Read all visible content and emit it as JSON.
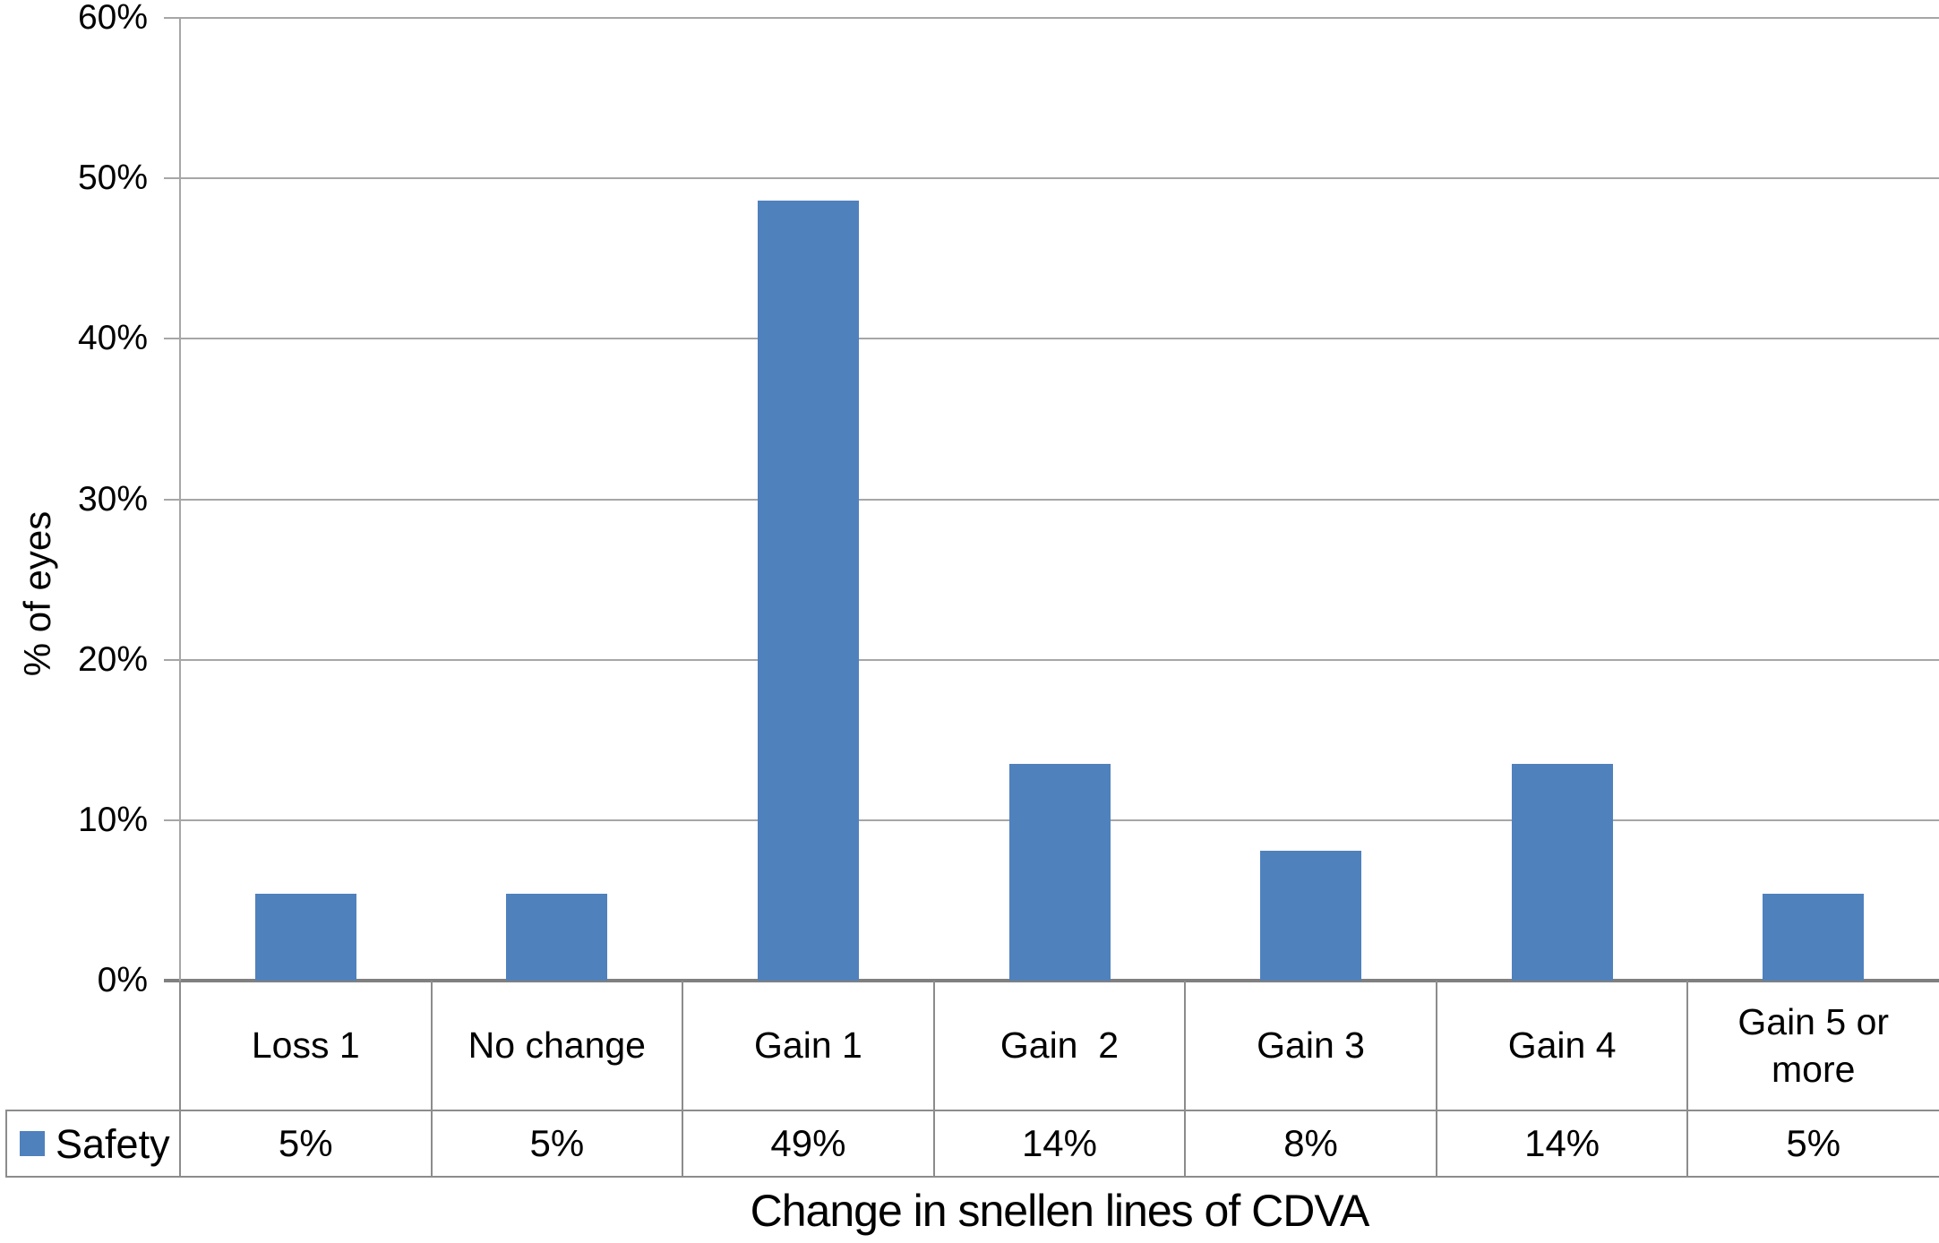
{
  "chart_data": {
    "type": "bar",
    "title": "",
    "xlabel": "Change in snellen lines of CDVA",
    "ylabel": "% of eyes",
    "categories": [
      "Loss 1",
      "No change",
      "Gain 1",
      "Gain  2",
      "Gain 3",
      "Gain 4",
      "Gain 5 or more"
    ],
    "series": [
      {
        "name": "Safety",
        "values": [
          5.4,
          5.4,
          48.6,
          13.5,
          8.1,
          13.5,
          5.4
        ],
        "value_labels": [
          "5%",
          "5%",
          "49%",
          "14%",
          "8%",
          "14%",
          "5%"
        ],
        "color": "#4f81bd"
      }
    ],
    "ylim": [
      0,
      60
    ],
    "ytick_step": 10,
    "ytick_labels": [
      "0%",
      "10%",
      "20%",
      "30%",
      "40%",
      "50%",
      "60%"
    ],
    "grid": "horizontal",
    "legend_position": "data-table-left",
    "has_data_table": true,
    "colors": {
      "bar": "#4f81bd",
      "gridline": "#a6a6a6",
      "axis_baseline": "#808080",
      "table_border": "#8c8c8c",
      "text": "#000000",
      "background": "#ffffff"
    }
  }
}
